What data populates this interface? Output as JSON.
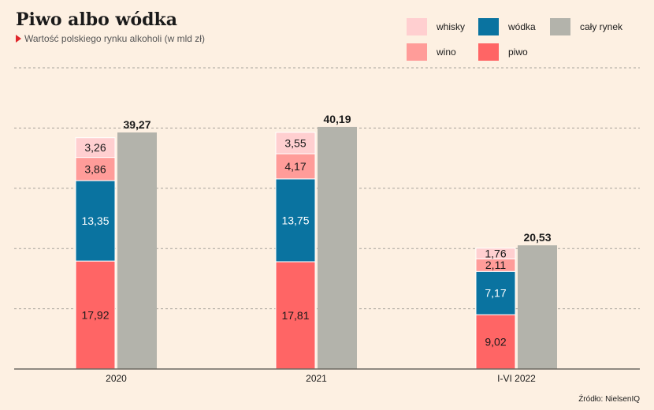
{
  "title": "Piwo albo wódka",
  "subtitle": "Wartość polskiego rynku alkoholi (w mld zł)",
  "source": "Źródło: NielsenIQ",
  "legend": [
    {
      "key": "whisky",
      "label": "whisky",
      "color": "#ffcfd0"
    },
    {
      "key": "wodka",
      "label": "wódka",
      "color": "#0a73a0"
    },
    {
      "key": "rynek",
      "label": "cały rynek",
      "color": "#b3b3ab"
    },
    {
      "key": "wino",
      "label": "wino",
      "color": "#ff9c99"
    },
    {
      "key": "piwo",
      "label": "piwo",
      "color": "#ff6565"
    }
  ],
  "chart_data": {
    "type": "bar",
    "categories": [
      "2020",
      "2021",
      "I-VI 2022"
    ],
    "stacked_series": [
      {
        "name": "piwo",
        "color": "#ff6565",
        "values": [
          17.92,
          17.81,
          9.02
        ],
        "labels": [
          "17,92",
          "17,81",
          "9,02"
        ],
        "label_color": "#1a1a1a"
      },
      {
        "name": "wódka",
        "color": "#0a73a0",
        "values": [
          13.35,
          13.75,
          7.17
        ],
        "labels": [
          "13,35",
          "13,75",
          "7,17"
        ],
        "label_color": "#ffffff"
      },
      {
        "name": "wino",
        "color": "#ff9c99",
        "values": [
          3.86,
          4.17,
          2.11
        ],
        "labels": [
          "3,86",
          "4,17",
          "2,11"
        ],
        "label_color": "#1a1a1a"
      },
      {
        "name": "whisky",
        "color": "#ffcfd0",
        "values": [
          3.26,
          3.55,
          1.76
        ],
        "labels": [
          "3,26",
          "3,55",
          "1,76"
        ],
        "label_color": "#1a1a1a"
      }
    ],
    "total_series": {
      "name": "cały rynek",
      "color": "#b3b3ab",
      "values": [
        39.27,
        40.19,
        20.53
      ],
      "labels": [
        "39,27",
        "40,19",
        "20,53"
      ]
    },
    "ylim": [
      0,
      50
    ],
    "grid": true
  }
}
